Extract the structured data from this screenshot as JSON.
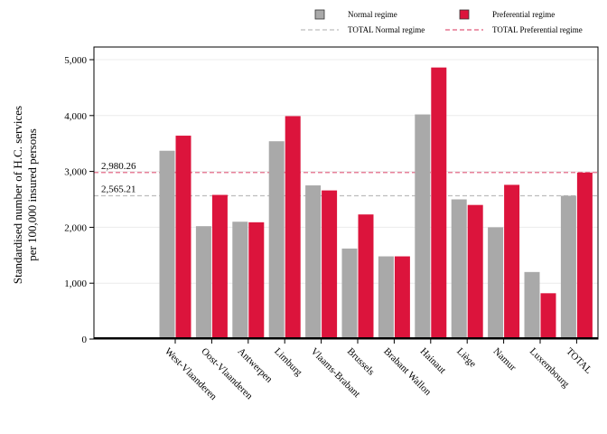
{
  "chart_data": {
    "type": "bar",
    "title": "",
    "xlabel": "",
    "ylabel_lines": [
      "Standardised number of H.C. services",
      "per 100,000 insured persons"
    ],
    "ylim": [
      0,
      5000
    ],
    "yticks": [
      0,
      1000,
      2000,
      3000,
      4000,
      5000
    ],
    "ytick_labels": [
      "0",
      "1,000",
      "2,000",
      "3,000",
      "4,000",
      "5,000"
    ],
    "grid": true,
    "legend_placement": "top",
    "categories": [
      "West-Vlaanderen",
      "Oost-Vlaanderen",
      "Antwerpen",
      "Limburg",
      "Vlaams-Brabant",
      "Brussels",
      "Brabant Wallon",
      "Hainaut",
      "Liège",
      "Namur",
      "Luxembourg",
      "TOTAL"
    ],
    "series": [
      {
        "name": "Normal regime",
        "color": "#a9a9a9",
        "values": [
          3370,
          2020,
          2100,
          3540,
          2750,
          1620,
          1480,
          4020,
          2500,
          2000,
          1200,
          2565.21
        ]
      },
      {
        "name": "Preferential regime",
        "color": "#dc143c",
        "values": [
          3640,
          2580,
          2090,
          3990,
          2660,
          2230,
          1480,
          4860,
          2400,
          2760,
          820,
          2980.26
        ]
      }
    ],
    "reference_lines": [
      {
        "name": "TOTAL Normal regime",
        "value": 2565.21,
        "label": "2,565.21",
        "color": "#bdbdbd",
        "style": "dashed"
      },
      {
        "name": "TOTAL Preferential regime",
        "value": 2980.26,
        "label": "2,980.26",
        "color": "#e05a7a",
        "style": "dashed"
      }
    ]
  }
}
